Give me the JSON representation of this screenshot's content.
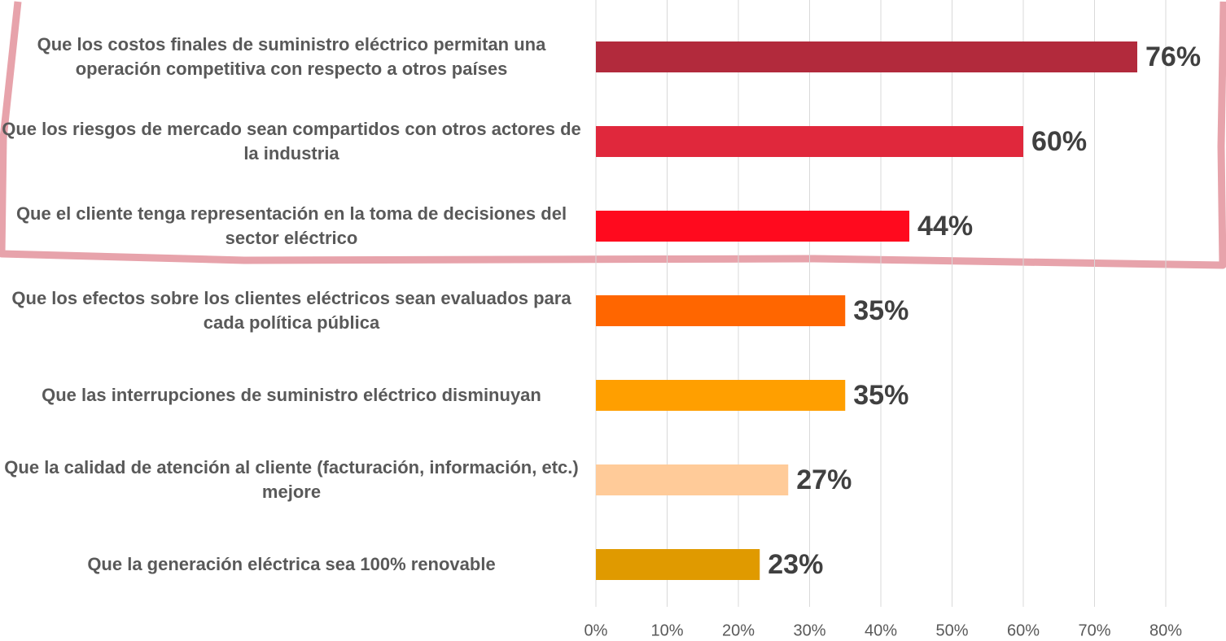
{
  "chart_data": {
    "type": "bar",
    "orientation": "horizontal",
    "categories": [
      "Que los costos finales de suministro eléctrico permitan una operación competitiva con respecto a otros países",
      "Que los riesgos de mercado sean compartidos con otros actores de la industria",
      "Que el cliente tenga representación en la toma de decisiones del sector eléctrico",
      "Que los efectos sobre los clientes eléctricos sean evaluados para cada política pública",
      "Que las interrupciones de suministro eléctrico disminuyan",
      "Que la calidad de atención al cliente (facturación, información, etc.) mejore",
      "Que la generación eléctrica sea 100% renovable"
    ],
    "values": [
      76,
      60,
      44,
      35,
      35,
      27,
      23
    ],
    "value_labels": [
      "76%",
      "60%",
      "44%",
      "35%",
      "35%",
      "27%",
      "23%"
    ],
    "colors": [
      "#b22a3c",
      "#e0283c",
      "#ff0a1e",
      "#ff6600",
      "#ff9f00",
      "#ffcb99",
      "#e09a00"
    ],
    "xlim": [
      0,
      80
    ],
    "xticks": [
      {
        "value": 0,
        "label": "0%"
      },
      {
        "value": 10,
        "label": "10%"
      },
      {
        "value": 20,
        "label": "20%"
      },
      {
        "value": 30,
        "label": "30%"
      },
      {
        "value": 40,
        "label": "40%"
      },
      {
        "value": 50,
        "label": "50%"
      },
      {
        "value": 60,
        "label": "60%"
      },
      {
        "value": 70,
        "label": "70%"
      },
      {
        "value": 80,
        "label": "80%"
      }
    ],
    "grid": true
  }
}
